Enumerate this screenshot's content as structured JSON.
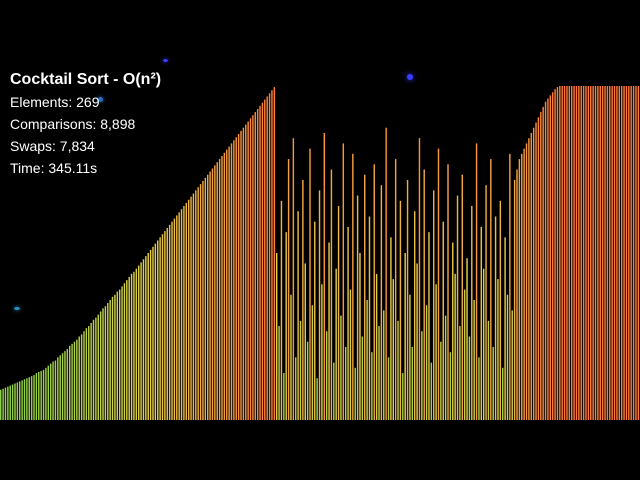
{
  "hud": {
    "title": "Cocktail Sort - O(n²)",
    "elements": "Elements: 269",
    "comparisons": "Comparisons: 8,898",
    "swaps": "Swaps: 7,834",
    "time": "Time: 345.11s"
  },
  "colors": {
    "background": "#000000",
    "bar_low": "#7fd24a",
    "bar_mid": "#e6d04a",
    "bar_high": "#ff7a3a",
    "sparkle": "#3a3cff"
  },
  "chart_data": {
    "type": "bar",
    "count": 269,
    "max_value": 320,
    "values": [
      29,
      30,
      31,
      32,
      33,
      34,
      35,
      36,
      37,
      38,
      39,
      40,
      41,
      42,
      43,
      45,
      46,
      47,
      48,
      50,
      52,
      54,
      56,
      57,
      60,
      62,
      64,
      66,
      68,
      71,
      73,
      75,
      77,
      80,
      82,
      85,
      88,
      90,
      93,
      96,
      98,
      101,
      104,
      107,
      109,
      112,
      115,
      118,
      120,
      123,
      125,
      128,
      131,
      134,
      137,
      140,
      142,
      145,
      148,
      151,
      154,
      157,
      160,
      163,
      166,
      169,
      172,
      175,
      178,
      181,
      184,
      187,
      190,
      193,
      196,
      199,
      202,
      205,
      208,
      211,
      214,
      217,
      220,
      223,
      226,
      229,
      232,
      235,
      238,
      241,
      244,
      247,
      250,
      253,
      256,
      259,
      262,
      265,
      268,
      271,
      274,
      277,
      280,
      283,
      286,
      289,
      292,
      295,
      298,
      301,
      304,
      307,
      310,
      313,
      316,
      319,
      160,
      90,
      210,
      45,
      180,
      250,
      120,
      270,
      60,
      200,
      95,
      230,
      150,
      75,
      260,
      110,
      190,
      40,
      220,
      130,
      275,
      85,
      170,
      240,
      55,
      145,
      205,
      100,
      265,
      70,
      185,
      125,
      255,
      50,
      215,
      160,
      80,
      235,
      115,
      195,
      65,
      245,
      140,
      90,
      225,
      105,
      280,
      60,
      175,
      135,
      250,
      95,
      210,
      45,
      160,
      230,
      120,
      70,
      200,
      150,
      270,
      85,
      240,
      110,
      180,
      55,
      220,
      130,
      260,
      75,
      190,
      100,
      245,
      65,
      170,
      140,
      215,
      90,
      235,
      125,
      155,
      80,
      205,
      115,
      265,
      60,
      185,
      145,
      225,
      95,
      250,
      70,
      195,
      135,
      210,
      50,
      175,
      120,
      255,
      105,
      230,
      240,
      250,
      255,
      260,
      265,
      270,
      275,
      280,
      285,
      290,
      295,
      300,
      305,
      308,
      311,
      314,
      317,
      319,
      320,
      320,
      320,
      320,
      320,
      320,
      320,
      320,
      320,
      320,
      320,
      320,
      320,
      320,
      320,
      320,
      320,
      320,
      320,
      320,
      320,
      320,
      320,
      320,
      320,
      320,
      320,
      320,
      320,
      320,
      320,
      320,
      320,
      320
    ]
  }
}
